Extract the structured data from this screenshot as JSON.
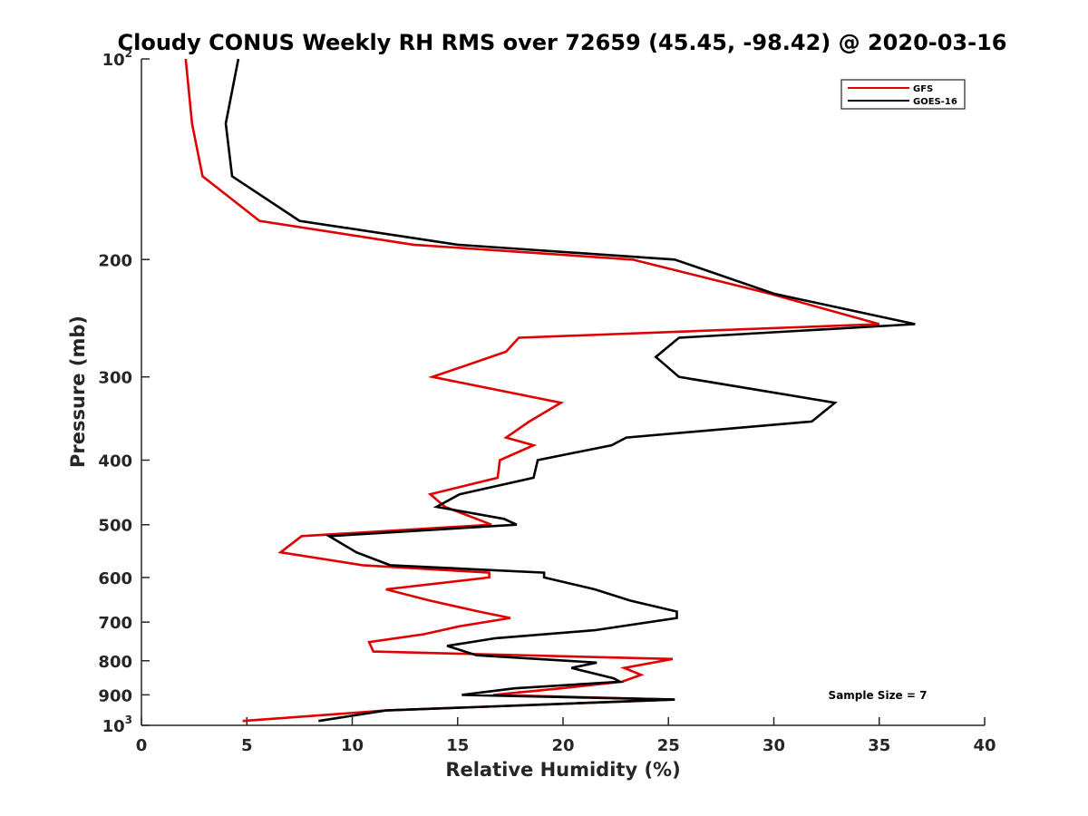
{
  "chart_data": {
    "type": "line",
    "title": "Cloudy CONUS Weekly RH RMS over 72659 (45.45, -98.42) @ 2020-03-16",
    "xlabel": "Relative Humidity (%)",
    "ylabel": "Pressure (mb)",
    "xlim": [
      0,
      40
    ],
    "ylim": [
      1000,
      100
    ],
    "yscale": "log",
    "y_reversed": true,
    "grid": false,
    "legend_position": "top-right",
    "x_ticks": [
      0,
      5,
      10,
      15,
      20,
      25,
      30,
      35,
      40
    ],
    "y_ticks": [
      {
        "value": 100,
        "label": "10",
        "sup": "2"
      },
      {
        "value": 200,
        "label": "200",
        "sup": ""
      },
      {
        "value": 300,
        "label": "300",
        "sup": ""
      },
      {
        "value": 400,
        "label": "400",
        "sup": ""
      },
      {
        "value": 500,
        "label": "500",
        "sup": ""
      },
      {
        "value": 600,
        "label": "600",
        "sup": ""
      },
      {
        "value": 700,
        "label": "700",
        "sup": ""
      },
      {
        "value": 800,
        "label": "800",
        "sup": ""
      },
      {
        "value": 900,
        "label": "900",
        "sup": ""
      },
      {
        "value": 1000,
        "label": "10",
        "sup": "3"
      }
    ],
    "annotation": "Sample Size = 7",
    "series": [
      {
        "name": "GFS",
        "color": "#e00000",
        "points": [
          [
            2.1,
            100
          ],
          [
            2.4,
            125
          ],
          [
            2.9,
            150
          ],
          [
            5.6,
            175
          ],
          [
            12.9,
            190
          ],
          [
            23.3,
            200
          ],
          [
            29.8,
            225
          ],
          [
            35.0,
            250
          ],
          [
            17.9,
            262
          ],
          [
            17.3,
            275
          ],
          [
            13.8,
            300
          ],
          [
            19.9,
            328
          ],
          [
            18.4,
            350
          ],
          [
            17.3,
            370
          ],
          [
            18.6,
            380
          ],
          [
            17.0,
            400
          ],
          [
            16.9,
            425
          ],
          [
            13.7,
            450
          ],
          [
            14.4,
            470
          ],
          [
            15.9,
            490
          ],
          [
            16.6,
            500
          ],
          [
            7.6,
            520
          ],
          [
            6.6,
            550
          ],
          [
            10.5,
            575
          ],
          [
            16.5,
            590
          ],
          [
            16.5,
            600
          ],
          [
            11.6,
            625
          ],
          [
            13.7,
            650
          ],
          [
            16.0,
            675
          ],
          [
            17.5,
            690
          ],
          [
            15.1,
            710
          ],
          [
            13.4,
            730
          ],
          [
            10.8,
            750
          ],
          [
            11.0,
            775
          ],
          [
            25.2,
            795
          ],
          [
            22.9,
            820
          ],
          [
            23.7,
            840
          ],
          [
            22.8,
            860
          ],
          [
            19.9,
            880
          ],
          [
            16.7,
            900
          ],
          [
            25.3,
            915
          ],
          [
            11.6,
            950
          ],
          [
            4.8,
            985
          ]
        ]
      },
      {
        "name": "GOES-16",
        "color": "#000000",
        "points": [
          [
            4.6,
            100
          ],
          [
            4.0,
            125
          ],
          [
            4.3,
            150
          ],
          [
            7.5,
            175
          ],
          [
            15.0,
            190
          ],
          [
            25.3,
            200
          ],
          [
            30.0,
            225
          ],
          [
            36.7,
            250
          ],
          [
            25.5,
            262
          ],
          [
            24.4,
            280
          ],
          [
            25.5,
            300
          ],
          [
            32.9,
            328
          ],
          [
            31.8,
            350
          ],
          [
            23.0,
            370
          ],
          [
            22.3,
            380
          ],
          [
            18.8,
            400
          ],
          [
            18.6,
            425
          ],
          [
            15.1,
            450
          ],
          [
            14.0,
            470
          ],
          [
            17.2,
            490
          ],
          [
            17.8,
            500
          ],
          [
            8.9,
            520
          ],
          [
            10.2,
            550
          ],
          [
            11.8,
            575
          ],
          [
            19.1,
            590
          ],
          [
            19.1,
            600
          ],
          [
            21.5,
            625
          ],
          [
            23.2,
            650
          ],
          [
            25.4,
            675
          ],
          [
            25.4,
            690
          ],
          [
            21.5,
            720
          ],
          [
            16.8,
            740
          ],
          [
            14.5,
            760
          ],
          [
            15.9,
            785
          ],
          [
            21.6,
            805
          ],
          [
            20.4,
            820
          ],
          [
            22.4,
            850
          ],
          [
            22.7,
            860
          ],
          [
            17.7,
            880
          ],
          [
            15.2,
            900
          ],
          [
            25.3,
            915
          ],
          [
            11.6,
            950
          ],
          [
            8.4,
            985
          ]
        ]
      }
    ]
  }
}
